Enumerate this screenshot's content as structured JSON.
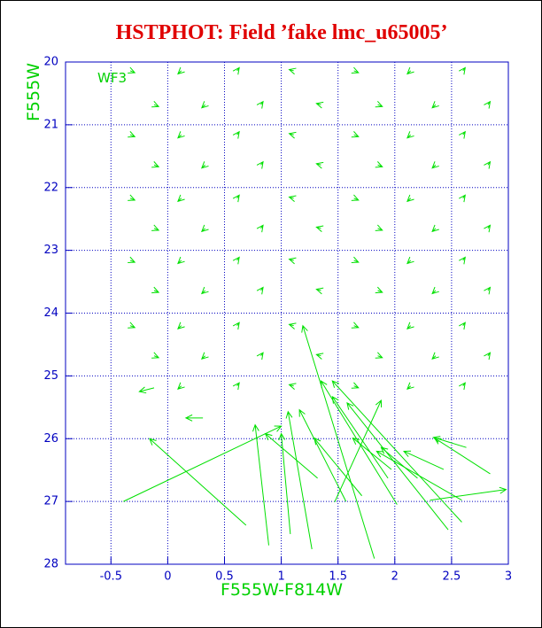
{
  "chart_data": {
    "type": "quiver",
    "title": "HSTPHOT: Field ’fake lmc_u65005’",
    "x_label": "F555W-F814W",
    "y_label": "F555W",
    "annotation": "WF3",
    "xlim": [
      -0.9,
      3.0
    ],
    "ylim": [
      20,
      28
    ],
    "invert_y": true,
    "xticks": [
      -0.5,
      0,
      0.5,
      1,
      1.5,
      2,
      2.5,
      3
    ],
    "yticks": [
      20,
      21,
      22,
      23,
      24,
      25,
      26,
      27,
      28
    ],
    "grid": true,
    "color": "#00e000",
    "arrows": {
      "x0": [
        -0.33,
        0.12,
        0.61,
        1.11,
        1.64,
        2.14,
        2.6,
        -0.12,
        0.33,
        0.82,
        1.35,
        1.85,
        2.36,
        2.82,
        -0.33,
        0.12,
        0.61,
        1.11,
        1.64,
        2.14,
        2.6,
        -0.12,
        0.33,
        0.82,
        1.35,
        1.85,
        2.36,
        2.82,
        -0.33,
        0.12,
        0.61,
        1.11,
        1.64,
        2.14,
        2.6,
        -0.12,
        0.33,
        0.82,
        1.35,
        1.85,
        2.36,
        2.82,
        -0.33,
        0.12,
        0.61,
        1.11,
        1.64,
        2.14,
        2.6,
        -0.12,
        0.33,
        0.82,
        1.35,
        1.85,
        2.36,
        2.82,
        -0.33,
        0.12,
        0.61,
        1.11,
        1.64,
        2.14,
        2.6,
        -0.12,
        0.33,
        0.82,
        1.35,
        1.85,
        2.36,
        2.82,
        0.12,
        0.61,
        1.11,
        1.64,
        2.14,
        2.6,
        -0.39,
        0.69,
        0.89,
        1.08,
        1.27,
        1.57,
        1.82,
        2.02,
        1.94,
        2.59,
        2.47,
        2.59,
        2.31,
        1.47,
        2.84,
        2.63,
        1.32,
        1.71,
        1.97,
        2.2,
        2.43,
        0.31,
        -0.12
      ],
      "y0": [
        20.14,
        20.14,
        20.14,
        20.14,
        20.14,
        20.14,
        20.14,
        20.68,
        20.68,
        20.68,
        20.68,
        20.68,
        20.68,
        20.68,
        21.16,
        21.16,
        21.16,
        21.16,
        21.16,
        21.16,
        21.16,
        21.64,
        21.64,
        21.64,
        21.64,
        21.64,
        21.64,
        21.64,
        22.17,
        22.17,
        22.17,
        22.17,
        22.17,
        22.17,
        22.17,
        22.65,
        22.65,
        22.65,
        22.65,
        22.65,
        22.65,
        22.65,
        23.16,
        23.16,
        23.16,
        23.16,
        23.16,
        23.16,
        23.16,
        23.64,
        23.64,
        23.64,
        23.64,
        23.64,
        23.64,
        23.64,
        24.2,
        24.2,
        24.2,
        24.2,
        24.2,
        24.2,
        24.2,
        24.68,
        24.68,
        24.68,
        24.68,
        24.68,
        24.68,
        24.68,
        25.16,
        25.16,
        25.16,
        25.16,
        25.16,
        25.16,
        27.0,
        27.38,
        27.7,
        27.52,
        27.76,
        27.0,
        27.91,
        27.05,
        26.63,
        27.33,
        27.45,
        26.98,
        26.98,
        27.01,
        26.56,
        26.14,
        26.63,
        26.91,
        26.49,
        26.63,
        26.49,
        25.67,
        25.19
      ],
      "x1": [
        -0.29,
        0.09,
        0.63,
        1.07,
        1.68,
        2.11,
        2.62,
        -0.08,
        0.3,
        0.84,
        1.31,
        1.89,
        2.33,
        2.84,
        -0.29,
        0.09,
        0.63,
        1.07,
        1.68,
        2.11,
        2.62,
        -0.08,
        0.3,
        0.84,
        1.31,
        1.89,
        2.33,
        2.84,
        -0.29,
        0.09,
        0.63,
        1.07,
        1.68,
        2.11,
        2.62,
        -0.08,
        0.3,
        0.84,
        1.31,
        1.89,
        2.33,
        2.84,
        -0.29,
        0.09,
        0.63,
        1.07,
        1.68,
        2.11,
        2.62,
        -0.08,
        0.3,
        0.84,
        1.31,
        1.89,
        2.33,
        2.84,
        -0.29,
        0.09,
        0.63,
        1.07,
        1.68,
        2.11,
        2.62,
        -0.08,
        0.3,
        0.84,
        1.31,
        1.89,
        2.33,
        2.84,
        0.09,
        0.63,
        1.07,
        1.68,
        2.11,
        2.62,
        1.0,
        -0.16,
        0.77,
        1.0,
        1.06,
        1.16,
        1.19,
        1.35,
        1.45,
        1.45,
        1.58,
        1.84,
        2.98,
        1.88,
        2.35,
        2.34,
        0.86,
        1.29,
        1.63,
        1.88,
        2.08,
        0.16,
        -0.25
      ],
      "y1": [
        20.17,
        20.19,
        20.09,
        20.12,
        20.17,
        20.19,
        20.09,
        20.71,
        20.73,
        20.63,
        20.66,
        20.71,
        20.73,
        20.63,
        21.19,
        21.21,
        21.11,
        21.14,
        21.19,
        21.21,
        21.11,
        21.67,
        21.69,
        21.59,
        21.62,
        21.67,
        21.69,
        21.59,
        22.2,
        22.22,
        22.12,
        22.15,
        22.2,
        22.22,
        22.12,
        22.68,
        22.7,
        22.6,
        22.63,
        22.68,
        22.7,
        22.6,
        23.19,
        23.21,
        23.11,
        23.14,
        23.19,
        23.21,
        23.11,
        23.67,
        23.69,
        23.59,
        23.62,
        23.67,
        23.69,
        23.59,
        24.23,
        24.25,
        24.15,
        24.18,
        24.23,
        24.25,
        24.15,
        24.71,
        24.73,
        24.63,
        24.66,
        24.71,
        24.73,
        24.63,
        25.21,
        25.11,
        25.14,
        25.19,
        25.21,
        25.11,
        25.8,
        26.0,
        25.78,
        25.92,
        25.57,
        25.54,
        24.2,
        25.08,
        25.33,
        25.08,
        25.43,
        26.2,
        26.81,
        25.39,
        25.99,
        25.98,
        25.92,
        25.99,
        25.99,
        26.14,
        26.2,
        25.67,
        25.25
      ]
    }
  }
}
